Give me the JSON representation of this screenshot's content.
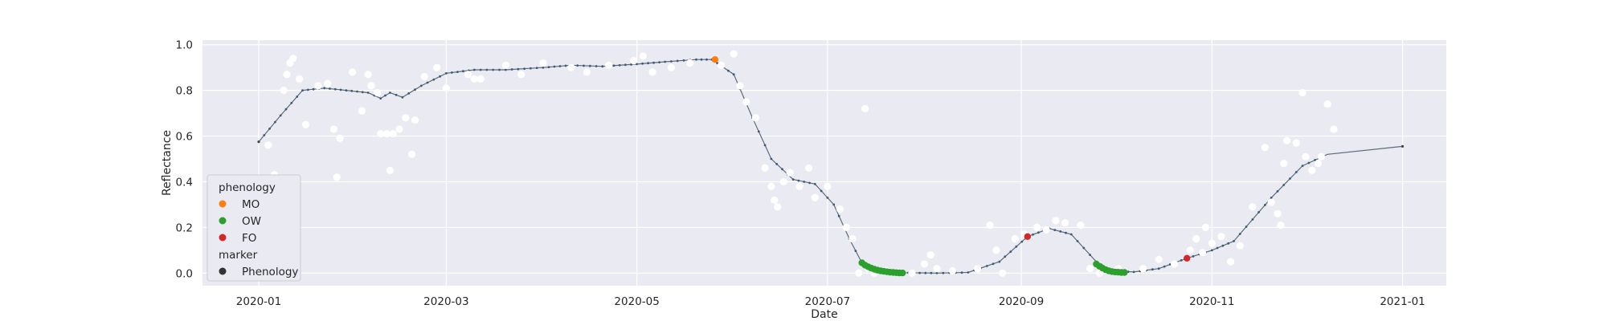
{
  "chart_data": {
    "type": "line",
    "xlabel": "Date",
    "ylabel": "Reflectance",
    "x_range": [
      "2019-12-14",
      "2021-01-15"
    ],
    "ylim": [
      -0.055,
      1.02
    ],
    "x_ticks": [
      "2020-01",
      "2020-03",
      "2020-05",
      "2020-07",
      "2020-09",
      "2020-11",
      "2021-01"
    ],
    "y_ticks": [
      "0.0",
      "0.2",
      "0.4",
      "0.6",
      "0.8",
      "1.0"
    ],
    "grid": true,
    "legend_placement": "lower-left",
    "legend": {
      "groups": [
        {
          "title": "phenology",
          "entries": [
            {
              "label": "MO",
              "color": "#ff7f0e"
            },
            {
              "label": "OW",
              "color": "#2ca02c"
            },
            {
              "label": "FO",
              "color": "#d62728"
            }
          ]
        },
        {
          "title": "marker",
          "entries": [
            {
              "label": "Phenology",
              "color": "#333333"
            }
          ]
        }
      ]
    },
    "colors": {
      "background": "#eaeaf2",
      "grid": "#ffffff",
      "line": "#5a6b7a",
      "raw_points": "#ffffff"
    },
    "smoothed_series": [
      [
        "2020-01-01",
        0.575
      ],
      [
        "2020-01-08",
        0.69
      ],
      [
        "2020-01-15",
        0.8
      ],
      [
        "2020-01-22",
        0.81
      ],
      [
        "2020-01-29",
        0.8
      ],
      [
        "2020-02-05",
        0.79
      ],
      [
        "2020-02-09",
        0.765
      ],
      [
        "2020-02-12",
        0.79
      ],
      [
        "2020-02-16",
        0.77
      ],
      [
        "2020-02-22",
        0.82
      ],
      [
        "2020-03-01",
        0.875
      ],
      [
        "2020-03-10",
        0.89
      ],
      [
        "2020-03-20",
        0.89
      ],
      [
        "2020-04-01",
        0.9
      ],
      [
        "2020-04-10",
        0.91
      ],
      [
        "2020-04-20",
        0.905
      ],
      [
        "2020-05-01",
        0.915
      ],
      [
        "2020-05-10",
        0.925
      ],
      [
        "2020-05-20",
        0.935
      ],
      [
        "2020-05-25",
        0.935
      ],
      [
        "2020-06-01",
        0.87
      ],
      [
        "2020-06-07",
        0.68
      ],
      [
        "2020-06-13",
        0.5
      ],
      [
        "2020-06-20",
        0.41
      ],
      [
        "2020-06-27",
        0.39
      ],
      [
        "2020-07-03",
        0.3
      ],
      [
        "2020-07-08",
        0.15
      ],
      [
        "2020-07-12",
        0.045
      ],
      [
        "2020-07-18",
        0.012
      ],
      [
        "2020-07-25",
        0.002
      ],
      [
        "2020-08-05",
        0.0
      ],
      [
        "2020-08-15",
        0.003
      ],
      [
        "2020-08-25",
        0.05
      ],
      [
        "2020-09-03",
        0.16
      ],
      [
        "2020-09-10",
        0.195
      ],
      [
        "2020-09-17",
        0.17
      ],
      [
        "2020-09-25",
        0.05
      ],
      [
        "2020-09-30",
        0.01
      ],
      [
        "2020-10-07",
        0.005
      ],
      [
        "2020-10-15",
        0.02
      ],
      [
        "2020-10-24",
        0.065
      ],
      [
        "2020-11-01",
        0.1
      ],
      [
        "2020-11-08",
        0.14
      ],
      [
        "2020-11-20",
        0.33
      ],
      [
        "2020-11-30",
        0.47
      ],
      [
        "2020-12-08",
        0.52
      ],
      [
        "2021-01-01",
        0.555
      ]
    ],
    "raw_observations": [
      [
        "2020-01-04",
        0.56
      ],
      [
        "2020-01-06",
        0.43
      ],
      [
        "2020-01-09",
        0.8
      ],
      [
        "2020-01-10",
        0.87
      ],
      [
        "2020-01-11",
        0.92
      ],
      [
        "2020-01-12",
        0.94
      ],
      [
        "2020-01-14",
        0.85
      ],
      [
        "2020-01-16",
        0.65
      ],
      [
        "2020-01-20",
        0.82
      ],
      [
        "2020-01-23",
        0.83
      ],
      [
        "2020-01-25",
        0.63
      ],
      [
        "2020-01-26",
        0.42
      ],
      [
        "2020-01-27",
        0.59
      ],
      [
        "2020-01-31",
        0.88
      ],
      [
        "2020-02-03",
        0.71
      ],
      [
        "2020-02-05",
        0.87
      ],
      [
        "2020-02-06",
        0.82
      ],
      [
        "2020-02-08",
        0.79
      ],
      [
        "2020-02-09",
        0.61
      ],
      [
        "2020-02-11",
        0.61
      ],
      [
        "2020-02-12",
        0.45
      ],
      [
        "2020-02-13",
        0.61
      ],
      [
        "2020-02-15",
        0.63
      ],
      [
        "2020-02-17",
        0.68
      ],
      [
        "2020-02-19",
        0.52
      ],
      [
        "2020-02-20",
        0.67
      ],
      [
        "2020-02-23",
        0.86
      ],
      [
        "2020-02-27",
        0.9
      ],
      [
        "2020-03-01",
        0.81
      ],
      [
        "2020-03-08",
        0.87
      ],
      [
        "2020-03-10",
        0.85
      ],
      [
        "2020-03-12",
        0.85
      ],
      [
        "2020-03-20",
        0.91
      ],
      [
        "2020-03-25",
        0.87
      ],
      [
        "2020-04-01",
        0.92
      ],
      [
        "2020-04-10",
        0.9
      ],
      [
        "2020-04-15",
        0.88
      ],
      [
        "2020-04-22",
        0.91
      ],
      [
        "2020-04-30",
        0.93
      ],
      [
        "2020-05-03",
        0.95
      ],
      [
        "2020-05-06",
        0.88
      ],
      [
        "2020-05-12",
        0.9
      ],
      [
        "2020-05-18",
        0.92
      ],
      [
        "2020-05-28",
        0.91
      ],
      [
        "2020-06-01",
        0.96
      ],
      [
        "2020-06-03",
        0.82
      ],
      [
        "2020-06-05",
        0.75
      ],
      [
        "2020-06-08",
        0.68
      ],
      [
        "2020-06-11",
        0.46
      ],
      [
        "2020-06-13",
        0.38
      ],
      [
        "2020-06-14",
        0.32
      ],
      [
        "2020-06-15",
        0.29
      ],
      [
        "2020-06-17",
        0.4
      ],
      [
        "2020-06-19",
        0.44
      ],
      [
        "2020-06-22",
        0.38
      ],
      [
        "2020-06-25",
        0.46
      ],
      [
        "2020-06-27",
        0.33
      ],
      [
        "2020-07-01",
        0.38
      ],
      [
        "2020-07-05",
        0.28
      ],
      [
        "2020-07-07",
        0.2
      ],
      [
        "2020-07-09",
        0.15
      ],
      [
        "2020-07-11",
        0.0
      ],
      [
        "2020-07-13",
        0.72
      ],
      [
        "2020-07-14",
        0.02
      ],
      [
        "2020-07-16",
        0.0
      ],
      [
        "2020-07-20",
        0.01
      ],
      [
        "2020-07-28",
        0.0
      ],
      [
        "2020-08-01",
        0.04
      ],
      [
        "2020-08-03",
        0.08
      ],
      [
        "2020-08-05",
        0.02
      ],
      [
        "2020-08-10",
        0.01
      ],
      [
        "2020-08-18",
        0.02
      ],
      [
        "2020-08-22",
        0.21
      ],
      [
        "2020-08-24",
        0.1
      ],
      [
        "2020-08-26",
        0.0
      ],
      [
        "2020-08-30",
        0.15
      ],
      [
        "2020-09-02",
        0.17
      ],
      [
        "2020-09-06",
        0.2
      ],
      [
        "2020-09-09",
        0.19
      ],
      [
        "2020-09-12",
        0.23
      ],
      [
        "2020-09-15",
        0.22
      ],
      [
        "2020-09-20",
        0.21
      ],
      [
        "2020-09-23",
        0.02
      ],
      [
        "2020-09-26",
        0.0
      ],
      [
        "2020-10-02",
        0.02
      ],
      [
        "2020-10-10",
        0.02
      ],
      [
        "2020-10-15",
        0.06
      ],
      [
        "2020-10-20",
        0.04
      ],
      [
        "2020-10-25",
        0.1
      ],
      [
        "2020-10-27",
        0.15
      ],
      [
        "2020-10-29",
        0.09
      ],
      [
        "2020-10-30",
        0.2
      ],
      [
        "2020-11-01",
        0.13
      ],
      [
        "2020-11-04",
        0.16
      ],
      [
        "2020-11-07",
        0.05
      ],
      [
        "2020-11-10",
        0.12
      ],
      [
        "2020-11-14",
        0.29
      ],
      [
        "2020-11-18",
        0.55
      ],
      [
        "2020-11-20",
        0.31
      ],
      [
        "2020-11-22",
        0.26
      ],
      [
        "2020-11-23",
        0.21
      ],
      [
        "2020-11-24",
        0.48
      ],
      [
        "2020-11-25",
        0.58
      ],
      [
        "2020-11-28",
        0.57
      ],
      [
        "2020-11-30",
        0.79
      ],
      [
        "2020-12-01",
        0.51
      ],
      [
        "2020-12-03",
        0.45
      ],
      [
        "2020-12-05",
        0.48
      ],
      [
        "2020-12-06",
        0.51
      ],
      [
        "2020-12-08",
        0.74
      ],
      [
        "2020-12-10",
        0.63
      ]
    ],
    "phenology_points": [
      {
        "label": "MO",
        "points": [
          [
            "2020-05-26",
            0.935
          ]
        ]
      },
      {
        "label": "OW",
        "points": [
          [
            "2020-07-12",
            0.045
          ],
          [
            "2020-07-13",
            0.035
          ],
          [
            "2020-07-14",
            0.028
          ],
          [
            "2020-07-15",
            0.022
          ],
          [
            "2020-07-16",
            0.017
          ],
          [
            "2020-07-17",
            0.013
          ],
          [
            "2020-07-18",
            0.01
          ],
          [
            "2020-07-19",
            0.008
          ],
          [
            "2020-07-20",
            0.006
          ],
          [
            "2020-07-21",
            0.004
          ],
          [
            "2020-07-22",
            0.003
          ],
          [
            "2020-07-23",
            0.002
          ],
          [
            "2020-07-24",
            0.001
          ],
          [
            "2020-07-25",
            0.001
          ],
          [
            "2020-09-25",
            0.04
          ],
          [
            "2020-09-26",
            0.03
          ],
          [
            "2020-09-27",
            0.022
          ],
          [
            "2020-09-28",
            0.015
          ],
          [
            "2020-09-29",
            0.01
          ],
          [
            "2020-09-30",
            0.007
          ],
          [
            "2020-10-01",
            0.005
          ],
          [
            "2020-10-02",
            0.004
          ],
          [
            "2020-10-03",
            0.003
          ],
          [
            "2020-10-04",
            0.003
          ]
        ]
      },
      {
        "label": "FO",
        "points": [
          [
            "2020-09-03",
            0.16
          ],
          [
            "2020-10-24",
            0.065
          ]
        ]
      }
    ]
  }
}
